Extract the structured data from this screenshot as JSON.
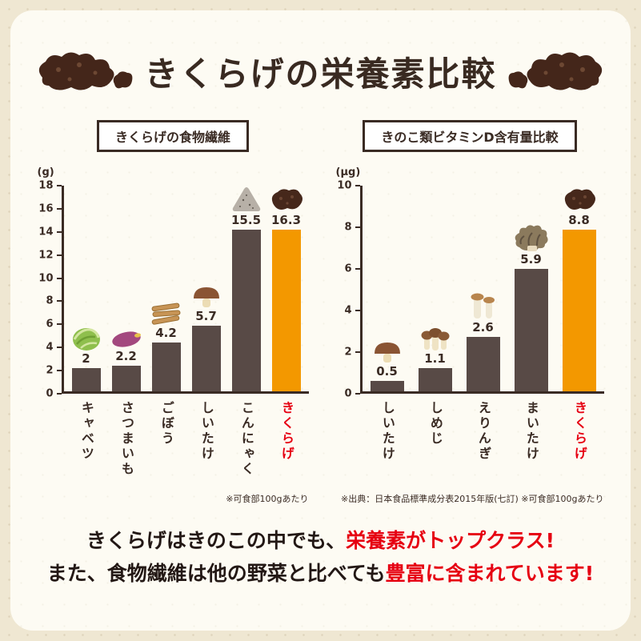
{
  "page": {
    "title_heading": "きくらげの栄養素比較"
  },
  "colors": {
    "background": "#efe7d2",
    "card": "#fdfbf3",
    "bar": "#584a46",
    "highlight": "#f39800",
    "red": "#e60012",
    "ink": "#3a2b24"
  },
  "chart_data": [
    {
      "type": "bar",
      "title": "きくらげの食物繊維",
      "unit": "(g)",
      "categories": [
        "キャベツ",
        "さつまいも",
        "ごぼう",
        "しいたけ",
        "こんにゃく",
        "きくらげ"
      ],
      "values": [
        2,
        2.2,
        4.2,
        5.7,
        15.5,
        16.3
      ],
      "icons": [
        "cabbage",
        "sweet-potato",
        "burdock",
        "shiitake",
        "konnyaku",
        "kikurage"
      ],
      "highlight_index": 5,
      "ylim": [
        0,
        18
      ],
      "ytick_step": 2,
      "grid": false,
      "legend": "none",
      "footnote": "※可食部100gあたり"
    },
    {
      "type": "bar",
      "title": "きのこ類ビタミンD含有量比較",
      "unit": "(μg)",
      "categories": [
        "しいたけ",
        "しめじ",
        "えりんぎ",
        "まいたけ",
        "きくらげ"
      ],
      "values": [
        0.5,
        1.1,
        2.6,
        5.9,
        8.8
      ],
      "icons": [
        "shiitake",
        "shimeji",
        "eringi",
        "maitake",
        "kikurage"
      ],
      "highlight_index": 4,
      "ylim": [
        0,
        10
      ],
      "ytick_step": 2,
      "grid": false,
      "legend": "none",
      "footnote": "※出典：日本食品標準成分表2015年版(七訂) ※可食部100gあたり"
    }
  ],
  "footer": {
    "line1_black": "きくらげはきのこの中でも、",
    "line1_red": "栄養素がトップクラス!",
    "line2_black": "また、食物繊維は他の野菜と比べても",
    "line2_red": "豊富に含まれています!"
  }
}
